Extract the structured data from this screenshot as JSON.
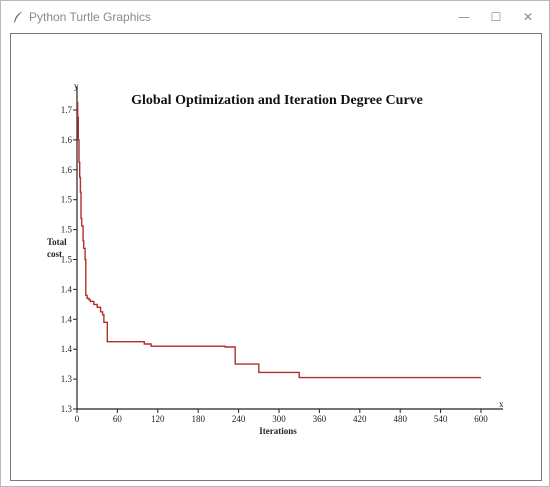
{
  "window": {
    "title": "Python Turtle Graphics",
    "minimize_glyph": "—",
    "maximize_glyph": "☐",
    "close_glyph": "✕"
  },
  "chart_data": {
    "type": "line",
    "title": "Global Optimization and Iteration Degree Curve",
    "xlabel": "Iterations",
    "ylabel_line1": "Total",
    "ylabel_line2": "cost",
    "x_axis_name": "x",
    "y_axis_name": "y",
    "xlim": [
      0,
      630
    ],
    "ylim": [
      1.3,
      1.72
    ],
    "x_ticks": [
      0,
      60,
      120,
      180,
      240,
      300,
      360,
      420,
      480,
      540,
      600
    ],
    "x_tick_labels": [
      "0",
      "60",
      "120",
      "180",
      "240",
      "300",
      "360",
      "420",
      "480",
      "540",
      "600"
    ],
    "y_ticks": [
      1.3,
      1.34,
      1.38,
      1.42,
      1.46,
      1.5,
      1.54,
      1.58,
      1.62,
      1.66,
      1.7
    ],
    "y_tick_labels": [
      "1.3",
      "1.3",
      "1.4",
      "1.4",
      "1.4",
      "1.5",
      "1.5",
      "1.5",
      "1.6",
      "1.6",
      "1.7"
    ],
    "colors": {
      "axis": "#222222",
      "series": "#b0302a"
    },
    "series": [
      {
        "values": [
          [
            0,
            1.71
          ],
          [
            1,
            1.69
          ],
          [
            2,
            1.66
          ],
          [
            3,
            1.63
          ],
          [
            4,
            1.61
          ],
          [
            5,
            1.59
          ],
          [
            6,
            1.555
          ],
          [
            7,
            1.545
          ],
          [
            9,
            1.525
          ],
          [
            10,
            1.515
          ],
          [
            12,
            1.5
          ],
          [
            13,
            1.452
          ],
          [
            15,
            1.448
          ],
          [
            18,
            1.446
          ],
          [
            20,
            1.444
          ],
          [
            25,
            1.44
          ],
          [
            30,
            1.436
          ],
          [
            35,
            1.43
          ],
          [
            38,
            1.426
          ],
          [
            40,
            1.416
          ],
          [
            45,
            1.39
          ],
          [
            100,
            1.387
          ],
          [
            110,
            1.384
          ],
          [
            220,
            1.383
          ],
          [
            235,
            1.36
          ],
          [
            240,
            1.36
          ],
          [
            270,
            1.349
          ],
          [
            330,
            1.342
          ],
          [
            600,
            1.342
          ]
        ]
      }
    ]
  }
}
